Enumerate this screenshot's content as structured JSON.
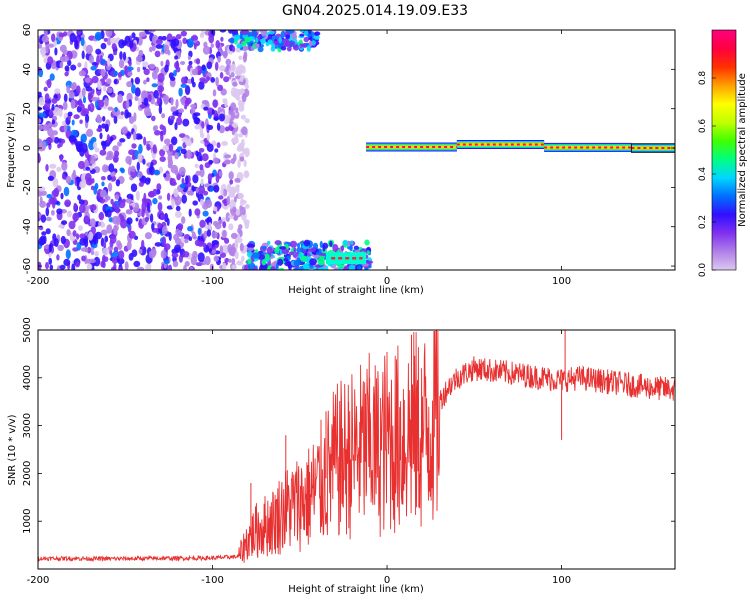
{
  "title": "GN04.2025.014.19.09.E33",
  "chart_data": [
    {
      "type": "heatmap",
      "xlabel": "Height of straight line (km)",
      "ylabel": "Frequency (Hz)",
      "xlim": [
        -200,
        165
      ],
      "ylim": [
        -62,
        60
      ],
      "x_ticks": [
        -200,
        -100,
        0,
        100
      ],
      "y_ticks": [
        60,
        40,
        20,
        0,
        -20,
        -40,
        -60
      ],
      "colorbar": {
        "label": "Normalized spectral amplitude",
        "range": [
          0.0,
          1.0
        ],
        "ticks": [
          "0.0",
          "0.2",
          "0.4",
          "0.6",
          "0.8"
        ],
        "colors": [
          "#dcc8f0",
          "#b080e8",
          "#8030f0",
          "#3010ff",
          "#0070ff",
          "#00d8ff",
          "#00ff80",
          "#40ff00",
          "#c0ff00",
          "#ffff00",
          "#ffa000",
          "#ff3000",
          "#ff0040",
          "#ff0080"
        ]
      },
      "regions": [
        {
          "name": "noise",
          "x": [
            -200,
            -80
          ],
          "y": [
            -62,
            60
          ]
        },
        {
          "name": "top-edge",
          "x": [
            -90,
            -40
          ],
          "y": [
            50,
            60
          ]
        },
        {
          "name": "bottom-edge",
          "x": [
            -80,
            -10
          ],
          "y": [
            -62,
            -48
          ]
        },
        {
          "name": "tone",
          "x": [
            -12,
            165
          ],
          "y": [
            -2,
            3
          ],
          "peak_amplitude": 0.95
        }
      ]
    },
    {
      "type": "line",
      "xlabel": "Height of straight line (km)",
      "ylabel": "SNR (10 * v/v)",
      "xlim": [
        -200,
        165
      ],
      "ylim": [
        0,
        5000
      ],
      "x_ticks": [
        -200,
        -100,
        0,
        100
      ],
      "y_ticks": [
        1000,
        2000,
        3000,
        4000,
        5000
      ],
      "color": "#e83030",
      "series": [
        {
          "x": [
            -200,
            -180,
            -160,
            -140,
            -120,
            -100,
            -85,
            -80,
            -75,
            -70,
            -65,
            -60,
            -55,
            -50,
            -45,
            -40,
            -35,
            -30,
            -25,
            -20,
            -15,
            -10,
            -5,
            0,
            5,
            10,
            15,
            20,
            25,
            30,
            35,
            40,
            45,
            50,
            60,
            70,
            80,
            90,
            100,
            110,
            120,
            130,
            140,
            150,
            165
          ],
          "values": [
            220,
            220,
            215,
            220,
            225,
            230,
            260,
            600,
            800,
            900,
            1000,
            1200,
            1300,
            1400,
            1500,
            1700,
            1900,
            2200,
            2300,
            2400,
            2500,
            2600,
            2500,
            2700,
            2700,
            2800,
            2900,
            2800,
            3100,
            3500,
            3800,
            4000,
            4100,
            4200,
            4150,
            4100,
            4050,
            4000,
            3950,
            4000,
            3950,
            3900,
            3850,
            3800,
            3750
          ]
        }
      ],
      "spikes": [
        {
          "x": -78,
          "value": 1800
        },
        {
          "x": -58,
          "value": 2800
        },
        {
          "x": -35,
          "value": 3300
        },
        {
          "x": -22,
          "value": 3500
        },
        {
          "x": -10,
          "value": 4000
        },
        {
          "x": 14,
          "value": 4900
        },
        {
          "x": 100,
          "value": 2700
        },
        {
          "x": 102,
          "value": 5000
        }
      ]
    }
  ]
}
